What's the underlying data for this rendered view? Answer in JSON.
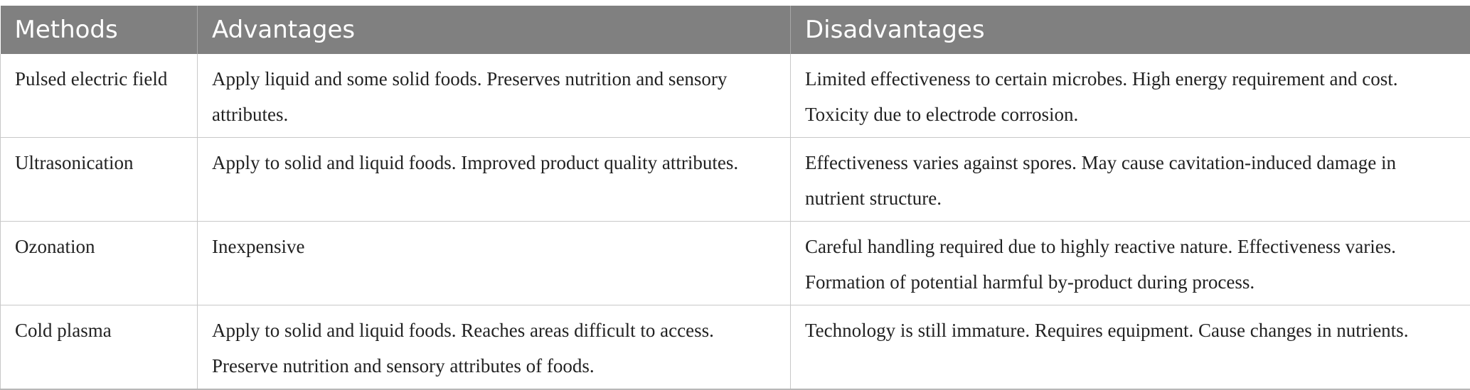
{
  "table": {
    "headers": [
      "Methods",
      "Advantages",
      "Disadvantages"
    ],
    "rows": [
      {
        "method": "Pulsed electric field",
        "advantages": "Apply liquid and some solid foods. Preserves nutrition and sensory attributes.",
        "disadvantages": "Limited effectiveness to certain microbes. High energy requirement and cost. Toxicity due to electrode corrosion."
      },
      {
        "method": "Ultrasonication",
        "advantages": "Apply to solid and liquid foods. Improved product quality attributes.",
        "disadvantages": "Effectiveness varies against spores. May cause cavitation-induced damage in nutrient structure."
      },
      {
        "method": "Ozonation",
        "advantages": "Inexpensive",
        "disadvantages": "Careful handling required due to highly reactive nature. Effectiveness varies. Formation of potential harmful by-product during process."
      },
      {
        "method": "Cold plasma",
        "advantages": "Apply to solid and liquid foods. Reaches areas difficult to access. Preserve nutrition and sensory attributes of foods.",
        "disadvantages": "Technology is still immature. Requires equipment. Cause changes in nutrients."
      }
    ]
  }
}
